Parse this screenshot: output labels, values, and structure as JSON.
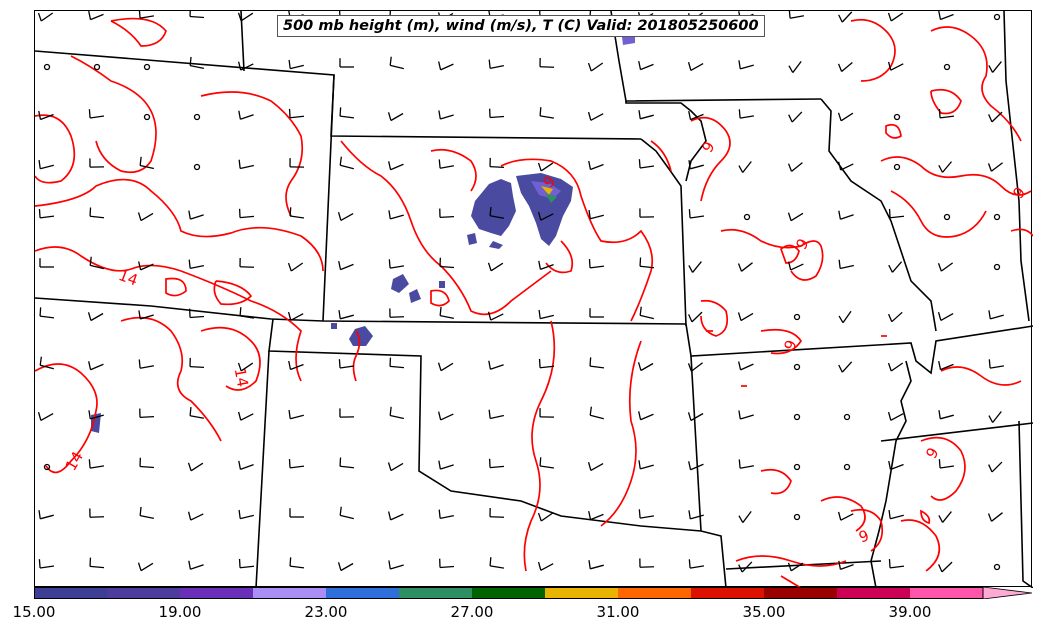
{
  "title": "500 mb height (m), wind (m/s), T (C) Valid: 201805250600",
  "colorbar": {
    "colors": [
      "#3d3f95",
      "#4d3c9e",
      "#6a2fb8",
      "#a98ef5",
      "#2f6fdc",
      "#2e8f62",
      "#006400",
      "#e8b400",
      "#ff6600",
      "#dd1100",
      "#990000",
      "#cc0055",
      "#ff55aa",
      "#ffaad5"
    ],
    "ticks": [
      "15.00",
      "19.00",
      "23.00",
      "27.00",
      "31.00",
      "35.00",
      "39.00"
    ]
  },
  "contour_labels": [
    "14",
    "14",
    "14",
    "9",
    "9",
    "9",
    "9",
    "9",
    "9",
    "9"
  ],
  "colors": {
    "temperature_contour": "#ff0000",
    "boundaries": "#000000",
    "wind_barb": "#000000",
    "wind_fill_main": "#4a4aa0"
  },
  "icons": [
    "wind-barb-icon",
    "calm-circle-icon"
  ]
}
